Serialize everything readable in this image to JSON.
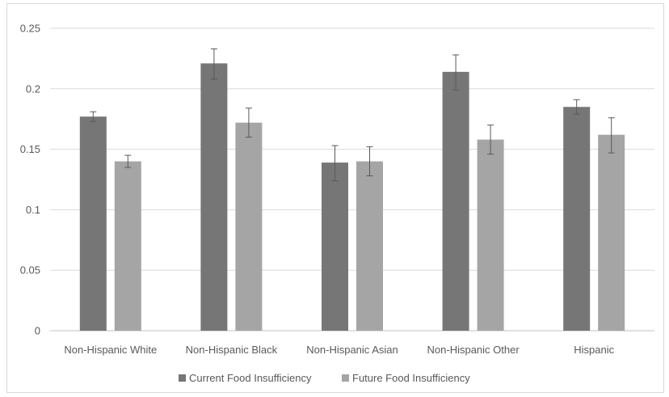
{
  "chart_data": {
    "type": "bar",
    "title": "",
    "xlabel": "",
    "ylabel": "",
    "categories": [
      "Non-Hispanic White",
      "Non-Hispanic Black",
      "Non-Hispanic Asian",
      "Non-Hispanic Other",
      "Hispanic"
    ],
    "series": [
      {
        "name": "Current Food Insufficiency",
        "color": "#767676",
        "values": [
          0.177,
          0.221,
          0.139,
          0.214,
          0.185
        ],
        "error_low": [
          0.173,
          0.208,
          0.124,
          0.199,
          0.179
        ],
        "error_high": [
          0.181,
          0.233,
          0.153,
          0.228,
          0.191
        ]
      },
      {
        "name": "Future Food Insufficiency",
        "color": "#a5a5a5",
        "values": [
          0.14,
          0.172,
          0.14,
          0.158,
          0.162
        ],
        "error_low": [
          0.135,
          0.16,
          0.128,
          0.146,
          0.147
        ],
        "error_high": [
          0.145,
          0.184,
          0.152,
          0.17,
          0.176
        ]
      }
    ],
    "ylim": [
      0,
      0.25
    ],
    "yticks": [
      0,
      0.05,
      0.1,
      0.15,
      0.2,
      0.25
    ],
    "ytick_labels": [
      "0",
      "0.05",
      "0.1",
      "0.15",
      "0.2",
      "0.25"
    ],
    "grid": true,
    "legend_position": "bottom"
  }
}
